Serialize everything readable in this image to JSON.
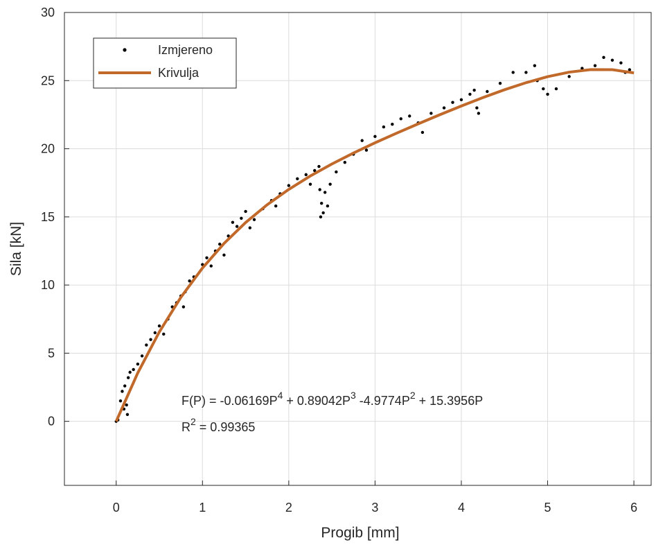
{
  "chart_data": {
    "type": "scatter",
    "xlabel": "Progib [mm]",
    "ylabel": "Sila [kN]",
    "xlim": [
      -0.6,
      6.2
    ],
    "ylim": [
      -4.7,
      30
    ],
    "xticks": [
      0,
      1,
      2,
      3,
      4,
      5,
      6
    ],
    "yticks": [
      0,
      5,
      10,
      15,
      20,
      25,
      30
    ],
    "grid": true,
    "legend": "upper left",
    "equation": [
      "F(P) = -0.06169P",
      "4",
      " + 0.89042P",
      "3",
      " -4.9774P",
      "2",
      " + 15.3956P"
    ],
    "r_squared": [
      "R",
      "2",
      " = 0.99365"
    ],
    "series": [
      {
        "name": "Izmjereno",
        "type": "scatter",
        "color": "#000000",
        "x": [
          0,
          0.02,
          0.05,
          0.07,
          0.09,
          0.1,
          0.12,
          0.13,
          0.14,
          0.16,
          0.2,
          0.25,
          0.3,
          0.35,
          0.4,
          0.45,
          0.5,
          0.55,
          0.6,
          0.65,
          0.7,
          0.75,
          0.78,
          0.8,
          0.85,
          0.9,
          1.0,
          1.05,
          1.1,
          1.15,
          1.2,
          1.25,
          1.3,
          1.35,
          1.4,
          1.45,
          1.5,
          1.55,
          1.6,
          1.7,
          1.8,
          1.85,
          1.9,
          2.0,
          2.1,
          2.2,
          2.25,
          2.3,
          2.35,
          2.36,
          2.37,
          2.38,
          2.4,
          2.42,
          2.45,
          2.48,
          2.55,
          2.65,
          2.75,
          2.85,
          2.9,
          3.0,
          3.1,
          3.2,
          3.3,
          3.4,
          3.5,
          3.55,
          3.65,
          3.8,
          3.9,
          4.0,
          4.1,
          4.15,
          4.18,
          4.2,
          4.3,
          4.45,
          4.6,
          4.75,
          4.85,
          4.88,
          4.95,
          5.0,
          5.1,
          5.25,
          5.4,
          5.55,
          5.65,
          5.75,
          5.85,
          5.9,
          5.95
        ],
        "values": [
          0,
          0.1,
          1.5,
          2.2,
          0.9,
          2.6,
          1.2,
          0.5,
          3.2,
          3.6,
          3.8,
          4.2,
          4.8,
          5.6,
          6.0,
          6.5,
          7.0,
          6.4,
          7.5,
          8.4,
          8.7,
          9.2,
          8.4,
          9.5,
          10.3,
          10.6,
          11.5,
          12.0,
          11.4,
          12.5,
          13.0,
          12.2,
          13.6,
          14.6,
          14.3,
          14.9,
          15.4,
          14.2,
          14.8,
          15.6,
          16.2,
          15.8,
          16.7,
          17.3,
          17.8,
          18.1,
          17.4,
          18.4,
          18.7,
          17.0,
          15.0,
          16.0,
          15.3,
          16.8,
          15.8,
          17.4,
          18.3,
          19.0,
          19.6,
          20.6,
          19.9,
          20.9,
          21.6,
          21.8,
          22.2,
          22.4,
          21.9,
          21.2,
          22.6,
          23.0,
          23.4,
          23.6,
          24.0,
          24.3,
          23.0,
          22.6,
          24.2,
          24.8,
          25.6,
          25.6,
          26.1,
          25.0,
          24.4,
          24.0,
          24.4,
          25.3,
          25.9,
          26.1,
          26.7,
          26.5,
          26.3,
          25.6,
          25.8
        ]
      },
      {
        "name": "Krivulja",
        "type": "line",
        "color": "#c0692a",
        "x": [
          0,
          0.25,
          0.5,
          0.75,
          1,
          1.25,
          1.5,
          1.75,
          2,
          2.25,
          2.5,
          2.75,
          3,
          3.25,
          3.5,
          3.75,
          4,
          4.25,
          4.5,
          4.75,
          5,
          5.25,
          5.5,
          5.75,
          6
        ],
        "values": [
          0,
          3.551,
          6.561,
          9.103,
          11.247,
          13.056,
          14.587,
          15.893,
          17.018,
          18.004,
          18.883,
          19.686,
          20.435,
          21.145,
          21.827,
          22.495,
          23.138,
          23.754,
          24.33,
          24.848,
          25.29,
          25.621,
          25.811,
          25.804,
          25.568
        ]
      }
    ]
  }
}
